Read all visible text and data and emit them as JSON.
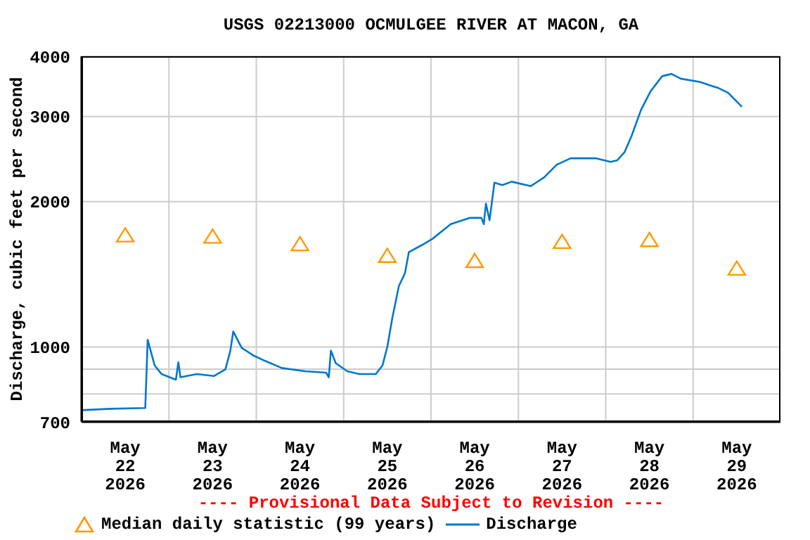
{
  "chart_data": {
    "type": "line",
    "title": "USGS 02213000 OCMULGEE RIVER AT MACON, GA",
    "ylabel": "Discharge, cubic feet per second",
    "annotations": [
      "---- Provisional Data Subject to Revision ----"
    ],
    "log": "y",
    "grid": true,
    "legend": "bottom",
    "xlim": [
      "2026-05-22T00:00",
      "2026-05-30T00:00"
    ],
    "xticks": [
      {
        "value": "2026-05-22T12:00",
        "label": "May\n22\n2026"
      },
      {
        "value": "2026-05-23T00:00",
        "label": null
      },
      {
        "value": "2026-05-23T12:00",
        "label": "May\n23\n2026"
      },
      {
        "value": "2026-05-24T00:00",
        "label": null
      },
      {
        "value": "2026-05-24T12:00",
        "label": "May\n24\n2026"
      },
      {
        "value": "2026-05-25T00:00",
        "label": null
      },
      {
        "value": "2026-05-25T12:00",
        "label": "May\n25\n2026"
      },
      {
        "value": "2026-05-26T00:00",
        "label": null
      },
      {
        "value": "2026-05-26T12:00",
        "label": "May\n26\n2026"
      },
      {
        "value": "2026-05-27T00:00",
        "label": null
      },
      {
        "value": "2026-05-27T12:00",
        "label": "May\n27\n2026"
      },
      {
        "value": "2026-05-28T00:00",
        "label": null
      },
      {
        "value": "2026-05-28T12:00",
        "label": "May\n28\n2026"
      },
      {
        "value": "2026-05-29T00:00",
        "label": null
      },
      {
        "value": "2026-05-29T12:00",
        "label": "May\n29\n2026"
      }
    ],
    "ylim": [
      700,
      4000
    ],
    "yticks": [
      700,
      {
        "value": 800,
        "label": null
      },
      {
        "value": 900,
        "label": null
      },
      1000,
      2000,
      3000,
      4000
    ],
    "series": [
      {
        "name": "Median daily statistic (99 years)",
        "type": "scatter",
        "marker": "triangle",
        "color": "#ff9900",
        "x": [
          "2026-05-22T12:00",
          "2026-05-23T12:00",
          "2026-05-24T12:00",
          "2026-05-25T12:00",
          "2026-05-26T12:00",
          "2026-05-27T12:00",
          "2026-05-28T12:00",
          "2026-05-29T12:00"
        ],
        "values": [
          1707,
          1697,
          1637,
          1548,
          1511,
          1655,
          1670,
          1457
        ]
      },
      {
        "name": "Discharge",
        "marker": "none",
        "line_style": "solid",
        "color": "#0077cc",
        "x": [
          "2026-05-22T00:00",
          "2026-05-22T08:00",
          "2026-05-22T17:30",
          "2026-05-22T18:10",
          "2026-05-22T20:05",
          "2026-05-22T22:00",
          "2026-05-23T01:55",
          "2026-05-23T02:35",
          "2026-05-23T03:10",
          "2026-05-23T07:40",
          "2026-05-23T12:20",
          "2026-05-23T15:30",
          "2026-05-23T16:50",
          "2026-05-23T17:40",
          "2026-05-23T20:00",
          "2026-05-23T23:10",
          "2026-05-24T02:25",
          "2026-05-24T07:00",
          "2026-05-24T13:25",
          "2026-05-24T19:10",
          "2026-05-24T19:55",
          "2026-05-24T20:30",
          "2026-05-24T21:50",
          "2026-05-25T01:00",
          "2026-05-25T04:20",
          "2026-05-25T08:50",
          "2026-05-25T10:40",
          "2026-05-25T12:00",
          "2026-05-25T13:20",
          "2026-05-25T15:10",
          "2026-05-25T16:50",
          "2026-05-25T17:55",
          "2026-05-25T21:40",
          "2026-05-26T00:20",
          "2026-05-26T05:25",
          "2026-05-26T10:35",
          "2026-05-26T13:50",
          "2026-05-26T14:30",
          "2026-05-26T15:05",
          "2026-05-26T16:05",
          "2026-05-26T17:25",
          "2026-05-26T19:35",
          "2026-05-26T22:10",
          "2026-05-27T03:25",
          "2026-05-27T07:10",
          "2026-05-27T10:30",
          "2026-05-27T14:20",
          "2026-05-27T21:25",
          "2026-05-28T01:20",
          "2026-05-28T03:10",
          "2026-05-28T05:10",
          "2026-05-28T07:05",
          "2026-05-28T09:40",
          "2026-05-28T12:20",
          "2026-05-28T15:30",
          "2026-05-28T18:05",
          "2026-05-28T20:35",
          "2026-05-29T01:50",
          "2026-05-29T07:00",
          "2026-05-29T09:35",
          "2026-05-29T13:25"
        ],
        "values": [
          740,
          745,
          748,
          1035,
          916,
          879,
          856,
          930,
          866,
          879,
          871,
          899,
          979,
          1077,
          996,
          961,
          936,
          905,
          891,
          885,
          866,
          983,
          926,
          891,
          879,
          879,
          916,
          1001,
          1145,
          1338,
          1421,
          1572,
          1629,
          1674,
          1797,
          1851,
          1851,
          1797,
          1981,
          1831,
          2189,
          2164,
          2200,
          2154,
          2248,
          2384,
          2459,
          2459,
          2418,
          2436,
          2532,
          2734,
          3094,
          3386,
          3637,
          3677,
          3595,
          3539,
          3436,
          3361,
          3143
        ]
      }
    ]
  }
}
